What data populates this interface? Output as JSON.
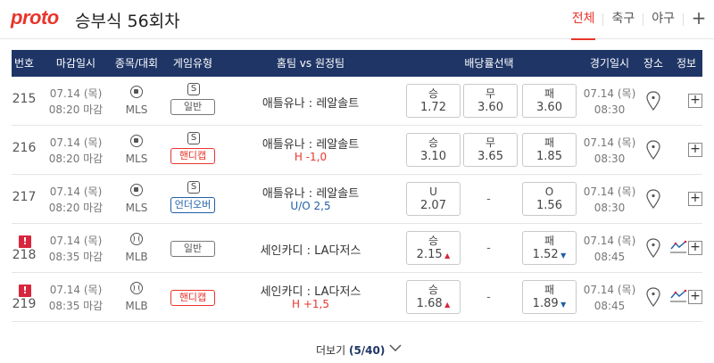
{
  "header": {
    "logo": "proto",
    "title": "승부식 56회차",
    "tabs": [
      "전체",
      "축구",
      "야구"
    ],
    "active_tab": "전체",
    "more": "+"
  },
  "columns": [
    "번호",
    "마감일시",
    "종목/대회",
    "게임유형",
    "홈팀 vs 원정팀",
    "배당률선택",
    "경기일시",
    "장소",
    "정보"
  ],
  "rows": [
    {
      "num": "215",
      "alert": false,
      "deadline_date": "07.14 (목)",
      "deadline_time": "08:20 마감",
      "sport": "soccer",
      "league": "MLS",
      "type_badge": "S",
      "type": "일반",
      "type_color": "gray",
      "match": "애틀유나 : 레알솔트",
      "handicap": "",
      "odds": [
        {
          "label": "승",
          "value": "1.72",
          "trend": ""
        },
        {
          "label": "무",
          "value": "3.60",
          "trend": ""
        },
        {
          "label": "패",
          "value": "3.60",
          "trend": ""
        }
      ],
      "game_date": "07.14 (목)",
      "game_time": "08:30",
      "graph": false
    },
    {
      "num": "216",
      "alert": false,
      "deadline_date": "07.14 (목)",
      "deadline_time": "08:20 마감",
      "sport": "soccer",
      "league": "MLS",
      "type_badge": "S",
      "type": "핸디캡",
      "type_color": "red",
      "match": "애틀유나 : 레알솔트",
      "handicap": "H -1,0",
      "odds": [
        {
          "label": "승",
          "value": "3.10",
          "trend": ""
        },
        {
          "label": "무",
          "value": "3.65",
          "trend": ""
        },
        {
          "label": "패",
          "value": "1.85",
          "trend": ""
        }
      ],
      "game_date": "07.14 (목)",
      "game_time": "08:30",
      "graph": false
    },
    {
      "num": "217",
      "alert": false,
      "deadline_date": "07.14 (목)",
      "deadline_time": "08:20 마감",
      "sport": "soccer",
      "league": "MLS",
      "type_badge": "S",
      "type": "언더오버",
      "type_color": "blue",
      "match": "애틀유나 : 레알솔트",
      "handicap": "U/O 2,5",
      "odds": [
        {
          "label": "U",
          "value": "2.07",
          "trend": ""
        },
        null,
        {
          "label": "O",
          "value": "1.56",
          "trend": ""
        }
      ],
      "none_mark": "-",
      "game_date": "07.14 (목)",
      "game_time": "08:30",
      "graph": false
    },
    {
      "num": "218",
      "alert": true,
      "alert_mark": "!",
      "deadline_date": "07.14 (목)",
      "deadline_time": "08:35 마감",
      "sport": "baseball",
      "league": "MLB",
      "type_badge": "",
      "type": "일반",
      "type_color": "gray",
      "match": "세인카디 : LA다저스",
      "handicap": "",
      "odds": [
        {
          "label": "승",
          "value": "2.15",
          "trend": "up"
        },
        null,
        {
          "label": "패",
          "value": "1.52",
          "trend": "down"
        }
      ],
      "none_mark": "-",
      "game_date": "07.14 (목)",
      "game_time": "08:45",
      "graph": true
    },
    {
      "num": "219",
      "alert": true,
      "alert_mark": "!",
      "deadline_date": "07.14 (목)",
      "deadline_time": "08:35 마감",
      "sport": "baseball",
      "league": "MLB",
      "type_badge": "",
      "type": "핸디캡",
      "type_color": "red",
      "match": "세인카디 : LA다저스",
      "handicap": "H +1,5",
      "odds": [
        {
          "label": "승",
          "value": "1.68",
          "trend": "up"
        },
        null,
        {
          "label": "패",
          "value": "1.89",
          "trend": "down"
        }
      ],
      "none_mark": "-",
      "game_date": "07.14 (목)",
      "game_time": "08:45",
      "graph": true
    }
  ],
  "footer": {
    "more_label": "더보기",
    "more_count": "(5/40)"
  },
  "colors": {
    "accent": "#e8352b",
    "header_bg": "#1f3566",
    "up": "#d7263d",
    "down": "#1f5fa8"
  }
}
